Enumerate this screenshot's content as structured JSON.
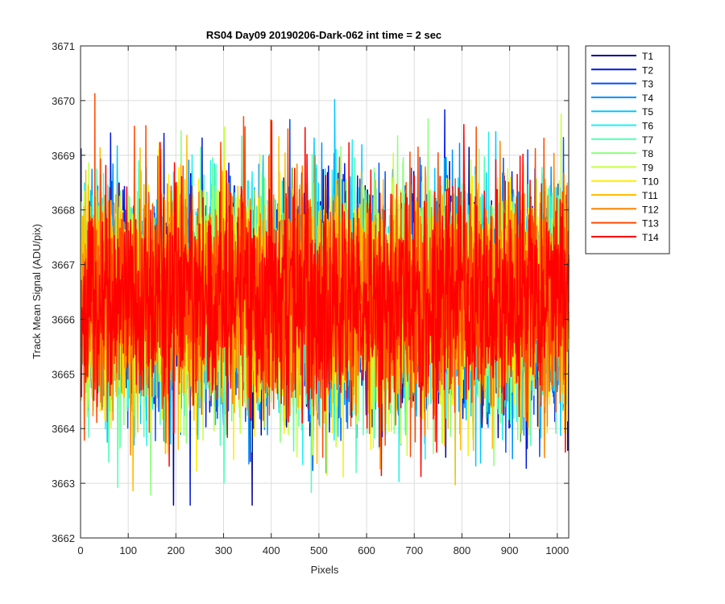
{
  "chart_data": {
    "type": "line",
    "title": "RS04 Day09 20190206-Dark-062 int time = 2 sec",
    "xlabel": "Pixels",
    "ylabel": "Track Mean Signal (ADU/pix)",
    "xlim": [
      0,
      1024
    ],
    "ylim": [
      3662,
      3671
    ],
    "xticks": [
      0,
      100,
      200,
      300,
      400,
      500,
      600,
      700,
      800,
      900,
      1000
    ],
    "yticks": [
      3662,
      3663,
      3664,
      3665,
      3666,
      3667,
      3668,
      3669,
      3670,
      3671
    ],
    "grid": true,
    "legend_position": "outside-top-right",
    "num_points_per_series": 1024,
    "signal_summary": {
      "center": 3666.4,
      "typical_range": [
        3664.5,
        3668.5
      ],
      "observed_min": 3662.6,
      "observed_max": 3670.6
    },
    "series": [
      {
        "name": "T1",
        "color": "#00008f"
      },
      {
        "name": "T2",
        "color": "#0018db"
      },
      {
        "name": "T3",
        "color": "#0050ff"
      },
      {
        "name": "T4",
        "color": "#0090ff"
      },
      {
        "name": "T5",
        "color": "#00c8ff"
      },
      {
        "name": "T6",
        "color": "#1ef0f0"
      },
      {
        "name": "T7",
        "color": "#50ffb8"
      },
      {
        "name": "T8",
        "color": "#8cff7c"
      },
      {
        "name": "T9",
        "color": "#c8ff40"
      },
      {
        "name": "T10",
        "color": "#ffee00"
      },
      {
        "name": "T11",
        "color": "#ffbe00"
      },
      {
        "name": "T12",
        "color": "#ff8400"
      },
      {
        "name": "T13",
        "color": "#ff4a00"
      },
      {
        "name": "T14",
        "color": "#ff0000"
      }
    ]
  }
}
